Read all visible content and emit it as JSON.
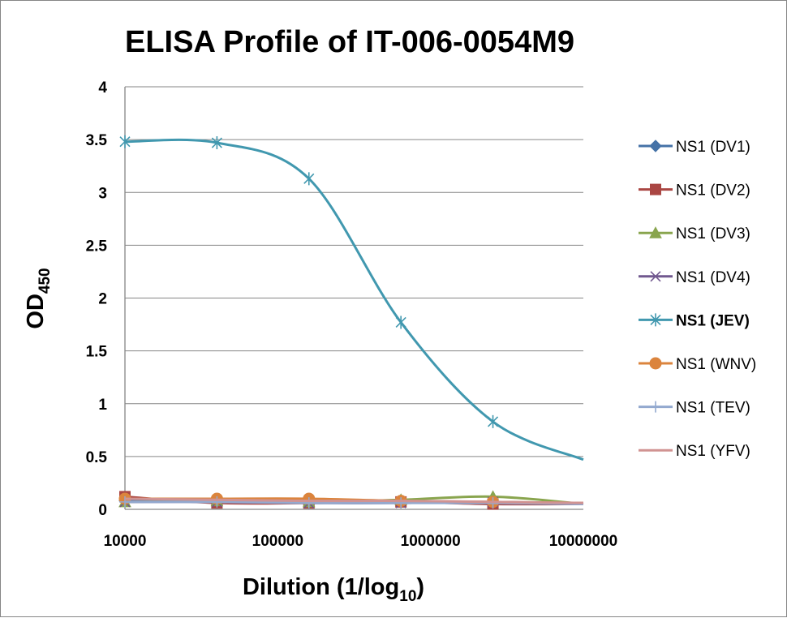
{
  "chart_data": {
    "type": "line",
    "title": "ELISA Profile of IT-006-0054M9",
    "xlabel": {
      "main": "Dilution (1/log",
      "sub": "10",
      "tail": ")"
    },
    "ylabel": {
      "main": "OD",
      "sub": "450"
    },
    "x_scale": "log",
    "xlim": [
      10000,
      10000000
    ],
    "ylim": [
      0,
      4
    ],
    "x_ticks": [
      "10000",
      "100000",
      "1000000",
      "10000000"
    ],
    "y_ticks": [
      "0",
      "0.5",
      "1",
      "1.5",
      "2",
      "2.5",
      "3",
      "3.5",
      "4"
    ],
    "grid": "horizontal",
    "legend_position": "right",
    "x": [
      10000,
      40000,
      160000,
      640000,
      2560000
    ],
    "series": [
      {
        "name": "NS1 (DV1)",
        "color": "#4572A7",
        "marker": "diamond",
        "values": [
          0.08,
          0.07,
          0.06,
          0.07,
          0.06
        ],
        "end": 0.05
      },
      {
        "name": "NS1 (DV2)",
        "color": "#AA4643",
        "marker": "square",
        "values": [
          0.12,
          0.06,
          0.06,
          0.07,
          0.05
        ],
        "end": 0.05
      },
      {
        "name": "NS1 (DV3)",
        "color": "#89A54E",
        "marker": "triangle",
        "values": [
          0.07,
          0.08,
          0.07,
          0.09,
          0.12
        ],
        "end": 0.05
      },
      {
        "name": "NS1 (DV4)",
        "color": "#71588F",
        "marker": "x",
        "values": [
          0.07,
          0.07,
          0.06,
          0.06,
          0.07
        ],
        "end": 0.05
      },
      {
        "name": "NS1 (JEV)",
        "color": "#4198AF",
        "marker": "star",
        "values": [
          3.48,
          3.47,
          3.13,
          1.77,
          0.83
        ],
        "end": 0.47,
        "bold": true
      },
      {
        "name": "NS1 (WNV)",
        "color": "#DB843D",
        "marker": "circle",
        "values": [
          0.1,
          0.1,
          0.1,
          0.08,
          0.07
        ],
        "end": 0.06
      },
      {
        "name": "NS1 (TEV)",
        "color": "#93A9CF",
        "marker": "plus",
        "values": [
          0.07,
          0.07,
          0.06,
          0.06,
          0.06
        ],
        "end": 0.05
      },
      {
        "name": "NS1 (YFV)",
        "color": "#D19392",
        "marker": "none",
        "values": [
          0.1,
          0.09,
          0.08,
          0.08,
          0.07
        ],
        "end": 0.06
      }
    ]
  }
}
